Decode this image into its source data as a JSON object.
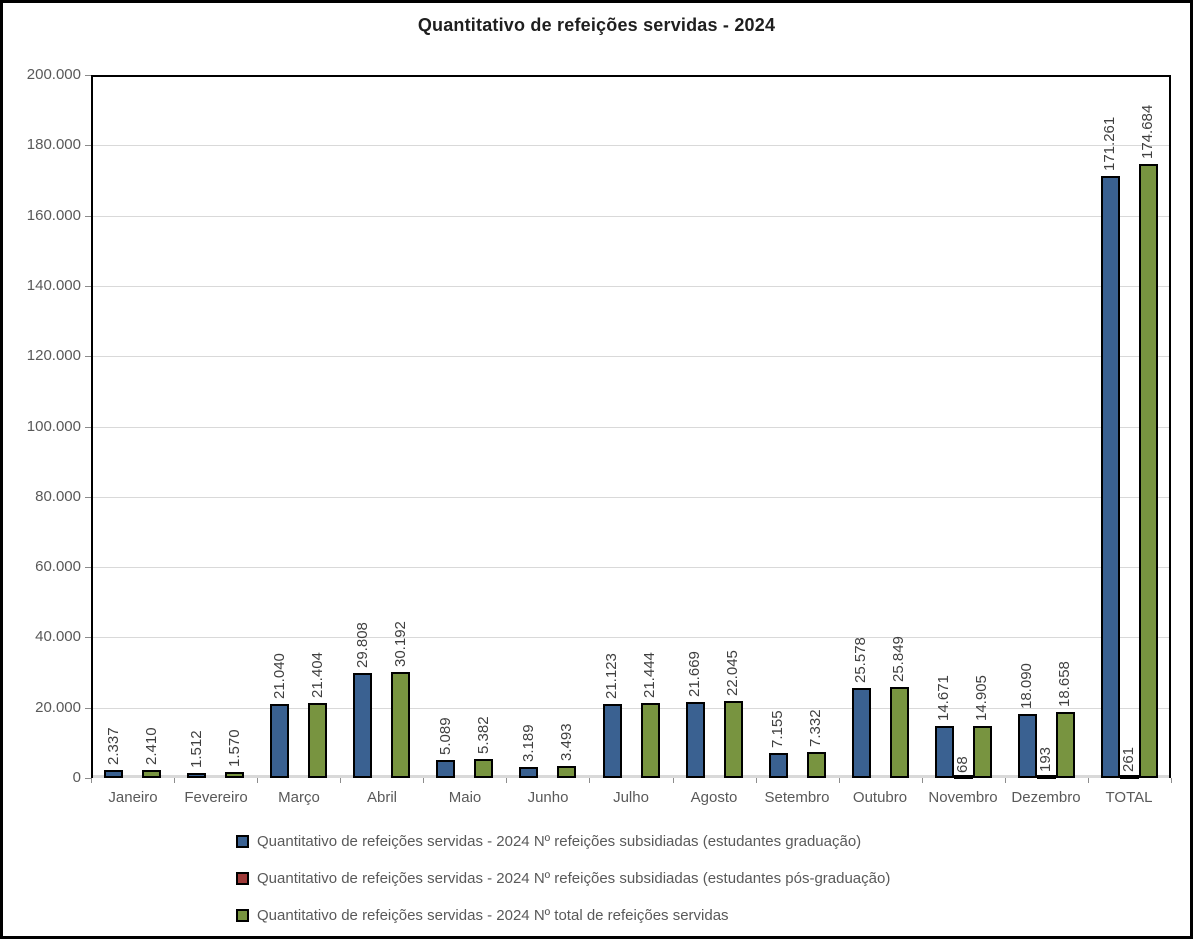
{
  "title": "Quantitativo de refeições servidas - 2024",
  "colors": {
    "series_graduacao": "#3a6191",
    "series_pos_graduacao": "#9e3a38",
    "series_total": "#789440",
    "bar_border": "#000000",
    "gridline": "#d9d9d9",
    "axis_text": "#595959",
    "data_label_text": "#3f3f3f",
    "title_text": "#1f1f1f"
  },
  "chart_data": {
    "type": "bar",
    "title": "Quantitativo de refeições servidas - 2024",
    "categories": [
      "Janeiro",
      "Fevereiro",
      "Março",
      "Abril",
      "Maio",
      "Junho",
      "Julho",
      "Agosto",
      "Setembro",
      "Outubro",
      "Novembro",
      "Dezembro",
      "TOTAL"
    ],
    "series": [
      {
        "name": "Quantitativo de refeições servidas - 2024 Nº refeições subsidiadas (estudantes graduação)",
        "key": "graduacao",
        "color": "#3a6191",
        "values": [
          2337,
          1512,
          21040,
          29808,
          5089,
          3189,
          21123,
          21669,
          7155,
          25578,
          14671,
          18090,
          171261
        ],
        "labels": [
          "2.337",
          "1.512",
          "21.040",
          "29.808",
          "5.089",
          "3.189",
          "21.123",
          "21.669",
          "7.155",
          "25.578",
          "14.671",
          "18.090",
          "171.261"
        ]
      },
      {
        "name": "Quantitativo de refeições servidas - 2024 Nº refeições subsidiadas (estudantes pós-graduação)",
        "key": "pos-graduacao",
        "color": "#9e3a38",
        "values": [
          null,
          null,
          null,
          null,
          null,
          null,
          null,
          null,
          null,
          null,
          68,
          193,
          261
        ],
        "labels": [
          "",
          "",
          "",
          "",
          "",
          "",
          "",
          "",
          "",
          "",
          "68",
          "193",
          "261"
        ]
      },
      {
        "name": "Quantitativo de refeições servidas - 2024 Nº total de refeições servidas",
        "key": "total",
        "color": "#789440",
        "values": [
          2410,
          1570,
          21404,
          30192,
          5382,
          3493,
          21444,
          22045,
          7332,
          25849,
          14905,
          18658,
          174684
        ],
        "labels": [
          "2.410",
          "1.570",
          "21.404",
          "30.192",
          "5.382",
          "3.493",
          "21.444",
          "22.045",
          "7.332",
          "25.849",
          "14.905",
          "18.658",
          "174.684"
        ]
      }
    ],
    "ylim": [
      0,
      200000
    ],
    "ytick_step": 20000,
    "ytick_labels_bottom_up": [
      "0",
      "20.000",
      "40.000",
      "60.000",
      "80.000",
      "100.000",
      "120.000",
      "140.000",
      "160.000",
      "180.000",
      "200.000"
    ],
    "grid": true,
    "data_labels_rotation": 90,
    "legend_position": "bottom"
  }
}
